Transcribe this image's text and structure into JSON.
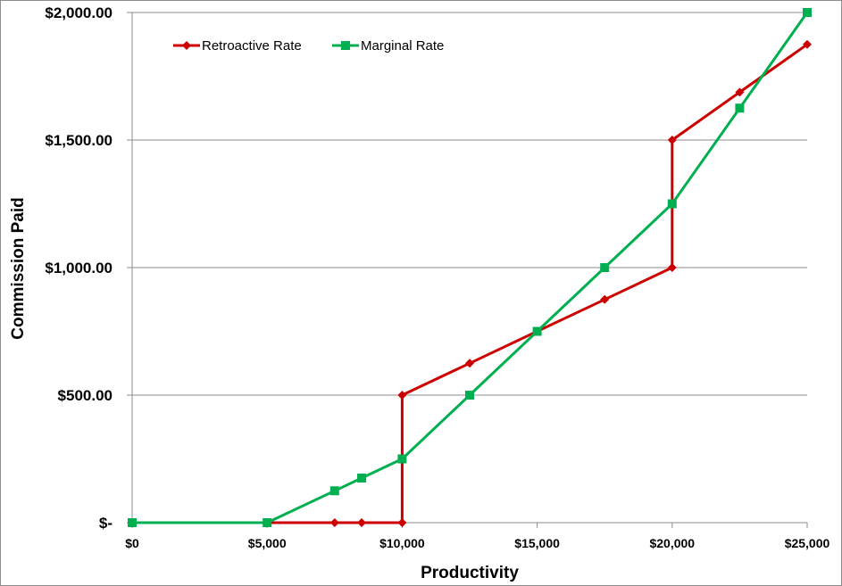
{
  "chart_data": {
    "type": "line",
    "xlabel": "Productivity",
    "ylabel": "Commission Paid",
    "xlim": [
      0,
      25000
    ],
    "ylim": [
      0,
      2000
    ],
    "x_ticks": [
      0,
      5000,
      10000,
      15000,
      20000,
      25000
    ],
    "x_tick_labels": [
      "$0",
      "$5,000",
      "$10,000",
      "$15,000",
      "$20,000",
      "$25,000"
    ],
    "y_ticks": [
      0,
      500,
      1000,
      1500,
      2000
    ],
    "y_tick_labels": [
      "$-",
      "$500.00",
      "$1,000.00",
      "$1,500.00",
      "$2,000.00"
    ],
    "grid": "horizontal",
    "legend_position": "top-left",
    "series": [
      {
        "name": "Retroactive Rate",
        "color": "#cc0000",
        "marker": "diamond",
        "points": [
          [
            0,
            0
          ],
          [
            5000,
            0
          ],
          [
            7500,
            0
          ],
          [
            8500,
            0
          ],
          [
            10000,
            0
          ],
          [
            10000,
            500
          ],
          [
            12500,
            625
          ],
          [
            15000,
            750
          ],
          [
            17500,
            875
          ],
          [
            20000,
            1000
          ],
          [
            20000,
            1500
          ],
          [
            22500,
            1687.5
          ],
          [
            25000,
            1875
          ]
        ]
      },
      {
        "name": "Marginal Rate",
        "color": "#00b050",
        "marker": "square",
        "points": [
          [
            0,
            0
          ],
          [
            5000,
            0
          ],
          [
            7500,
            125
          ],
          [
            8500,
            175
          ],
          [
            10000,
            250
          ],
          [
            12500,
            500
          ],
          [
            15000,
            750
          ],
          [
            17500,
            1000
          ],
          [
            20000,
            1250
          ],
          [
            22500,
            1625
          ],
          [
            25000,
            2000
          ]
        ]
      }
    ]
  }
}
